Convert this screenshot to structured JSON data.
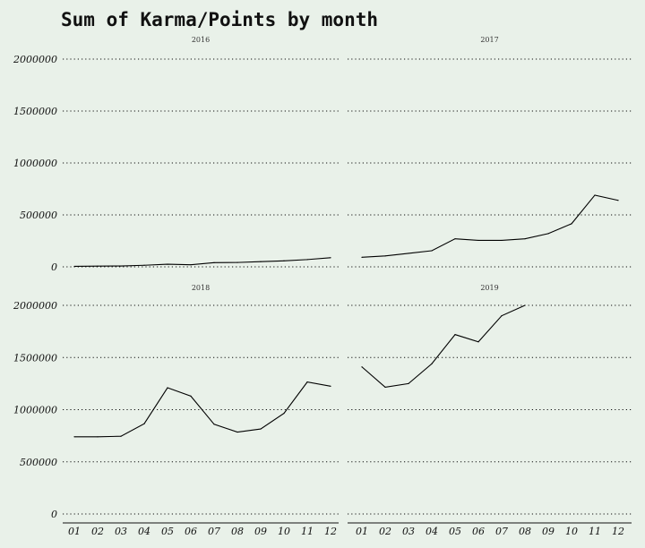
{
  "chart_data": {
    "type": "line",
    "title": "Sum of Karma/Points by month",
    "xlabel": "",
    "ylabel": "",
    "x_ticks": [
      "01",
      "02",
      "03",
      "04",
      "05",
      "06",
      "07",
      "08",
      "09",
      "10",
      "11",
      "12"
    ],
    "y_ticks": [
      "0",
      "500000",
      "1000000",
      "1500000",
      "2000000"
    ],
    "ylim": [
      0,
      2000000
    ],
    "grid": "horizontal dotted",
    "facets": [
      {
        "label": "2016",
        "x": [
          "01",
          "02",
          "03",
          "04",
          "05",
          "06",
          "07",
          "08",
          "09",
          "10",
          "11",
          "12"
        ],
        "values": [
          5000,
          7000,
          8000,
          15000,
          25000,
          20000,
          40000,
          42000,
          50000,
          58000,
          70000,
          88000
        ]
      },
      {
        "label": "2017",
        "x": [
          "01",
          "02",
          "03",
          "04",
          "05",
          "06",
          "07",
          "08",
          "09",
          "10",
          "11",
          "12"
        ],
        "values": [
          92000,
          105000,
          130000,
          155000,
          270000,
          255000,
          255000,
          270000,
          320000,
          415000,
          690000,
          640000
        ]
      },
      {
        "label": "2018",
        "x": [
          "01",
          "02",
          "03",
          "04",
          "05",
          "06",
          "07",
          "08",
          "09",
          "10",
          "11",
          "12"
        ],
        "values": [
          740000,
          740000,
          745000,
          865000,
          1210000,
          1130000,
          860000,
          785000,
          815000,
          965000,
          1265000,
          1225000
        ]
      },
      {
        "label": "2019",
        "x": [
          "01",
          "02",
          "03",
          "04",
          "05",
          "06",
          "07",
          "08"
        ],
        "values": [
          1410000,
          1215000,
          1250000,
          1440000,
          1720000,
          1650000,
          1900000,
          2000000
        ]
      }
    ]
  }
}
